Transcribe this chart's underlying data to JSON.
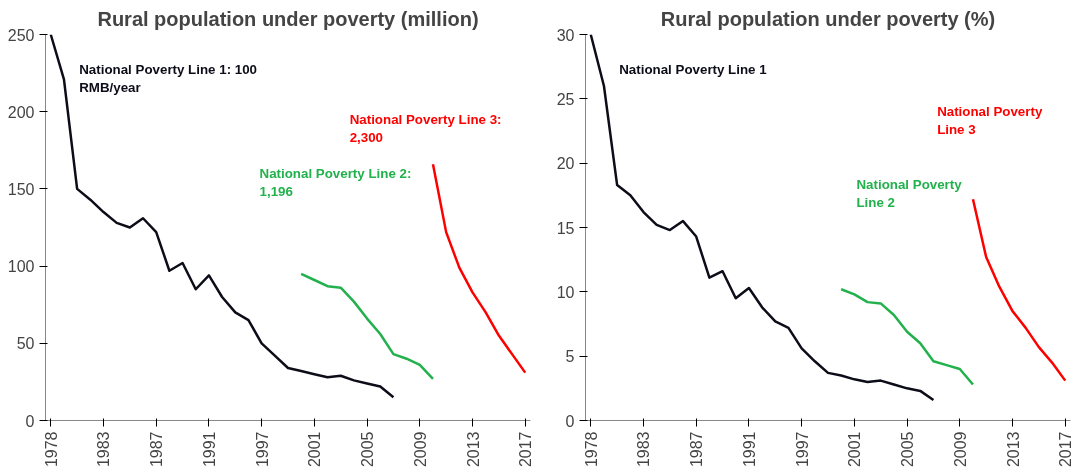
{
  "chart_data": [
    {
      "type": "line",
      "title": "Rural population under poverty (million)",
      "categories": [
        "1978",
        null,
        null,
        null,
        "1983",
        null,
        null,
        null,
        "1987",
        null,
        null,
        null,
        "1991",
        null,
        null,
        null,
        "1997",
        null,
        null,
        null,
        "2001",
        null,
        null,
        null,
        "2005",
        null,
        null,
        null,
        "2009",
        null,
        null,
        null,
        "2013",
        null,
        null,
        null,
        "2017"
      ],
      "ylim": [
        0,
        250
      ],
      "yticks": [
        0,
        50,
        100,
        150,
        200,
        250
      ],
      "grid": false,
      "legend": false,
      "series": [
        {
          "name": "National Poverty Line 1: 100 RMB/year",
          "color": "#0d0d1a",
          "values": [
            250,
            221,
            150,
            143,
            135,
            128,
            125,
            131,
            122,
            97,
            102,
            85,
            94,
            80,
            70,
            65,
            50,
            42,
            34,
            32,
            30,
            28,
            29,
            26,
            24,
            22,
            15,
            null,
            null,
            null,
            null,
            null,
            null,
            null,
            null,
            null,
            null
          ]
        },
        {
          "name": "National Poverty Line 2: 1,196",
          "color": "#22b14c",
          "values": [
            null,
            null,
            null,
            null,
            null,
            null,
            null,
            null,
            null,
            null,
            null,
            null,
            null,
            null,
            null,
            null,
            null,
            null,
            null,
            95,
            91,
            87,
            86,
            77,
            66,
            56,
            43,
            40,
            36,
            27,
            null,
            null,
            null,
            null,
            null,
            null,
            null
          ]
        },
        {
          "name": "National Poverty Line 3: 2,300",
          "color": "#ff0000",
          "values": [
            null,
            null,
            null,
            null,
            null,
            null,
            null,
            null,
            null,
            null,
            null,
            null,
            null,
            null,
            null,
            null,
            null,
            null,
            null,
            null,
            null,
            null,
            null,
            null,
            null,
            null,
            null,
            null,
            null,
            166,
            122,
            99,
            83,
            70,
            55,
            43,
            31
          ]
        }
      ]
    },
    {
      "type": "line",
      "title": "Rural population under poverty (%)",
      "categories": [
        "1978",
        null,
        null,
        null,
        "1983",
        null,
        null,
        null,
        "1987",
        null,
        null,
        null,
        "1991",
        null,
        null,
        null,
        "1997",
        null,
        null,
        null,
        "2001",
        null,
        null,
        null,
        "2005",
        null,
        null,
        null,
        "2009",
        null,
        null,
        null,
        "2013",
        null,
        null,
        null,
        "2017"
      ],
      "ylim": [
        0,
        30
      ],
      "yticks": [
        0,
        5,
        10,
        15,
        20,
        25,
        30
      ],
      "grid": false,
      "legend": false,
      "series": [
        {
          "name": "National Poverty Line 1",
          "color": "#0d0d1a",
          "values": [
            30,
            26,
            18.3,
            17.5,
            16.2,
            15.2,
            14.8,
            15.5,
            14.3,
            11.1,
            11.6,
            9.5,
            10.3,
            8.8,
            7.7,
            7.2,
            5.6,
            4.6,
            3.7,
            3.5,
            3.2,
            3.0,
            3.1,
            2.8,
            2.5,
            2.3,
            1.6,
            null,
            null,
            null,
            null,
            null,
            null,
            null,
            null,
            null,
            null
          ]
        },
        {
          "name": "National Poverty Line 2",
          "color": "#22b14c",
          "values": [
            null,
            null,
            null,
            null,
            null,
            null,
            null,
            null,
            null,
            null,
            null,
            null,
            null,
            null,
            null,
            null,
            null,
            null,
            null,
            10.2,
            9.8,
            9.2,
            9.1,
            8.2,
            6.9,
            6.0,
            4.6,
            4.3,
            4.0,
            2.8,
            null,
            null,
            null,
            null,
            null,
            null,
            null
          ]
        },
        {
          "name": "National Poverty Line 3",
          "color": "#ff0000",
          "values": [
            null,
            null,
            null,
            null,
            null,
            null,
            null,
            null,
            null,
            null,
            null,
            null,
            null,
            null,
            null,
            null,
            null,
            null,
            null,
            null,
            null,
            null,
            null,
            null,
            null,
            null,
            null,
            null,
            null,
            17.2,
            12.7,
            10.4,
            8.5,
            7.2,
            5.7,
            4.5,
            3.1
          ]
        }
      ]
    }
  ]
}
